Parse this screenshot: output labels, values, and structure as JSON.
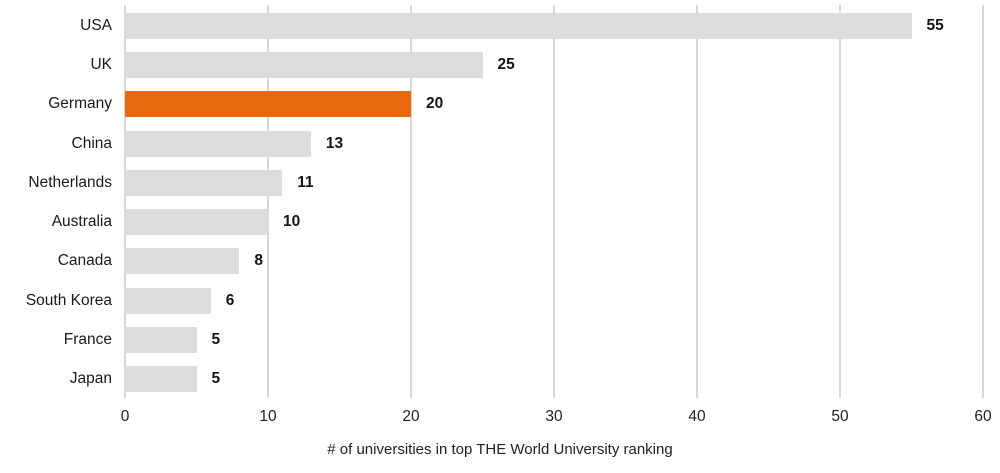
{
  "chart_data": {
    "type": "bar",
    "orientation": "horizontal",
    "categories": [
      "USA",
      "UK",
      "Germany",
      "China",
      "Netherlands",
      "Australia",
      "Canada",
      "South Korea",
      "France",
      "Japan"
    ],
    "values": [
      55,
      25,
      20,
      13,
      11,
      10,
      8,
      6,
      5,
      5
    ],
    "highlight_category": "Germany",
    "highlight_index": 2,
    "title": "",
    "xlabel": "# of universities in top THE World University ranking",
    "ylabel": "",
    "xlim": [
      0,
      60
    ],
    "xticks": [
      0,
      10,
      20,
      30,
      40,
      50,
      60
    ],
    "grid": "vertical",
    "legend": "none",
    "colors": {
      "bar": "#dcdcdc",
      "highlight": "#e8680d",
      "gridline": "#d8d8d8",
      "text": "#1a1a1a",
      "background": "#ffffff"
    }
  }
}
